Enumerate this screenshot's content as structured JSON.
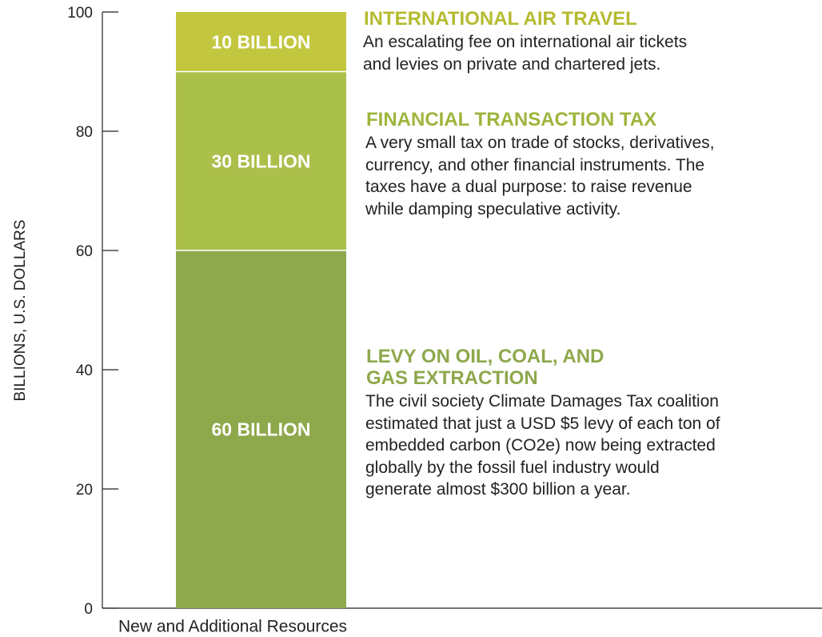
{
  "chart_data": {
    "type": "bar",
    "stacked": true,
    "categories": [
      "New and Additional Resources"
    ],
    "ylabel": "BILLIONS, U.S. DOLLARS",
    "ylim": [
      0,
      100
    ],
    "yticks": [
      0,
      20,
      40,
      60,
      80,
      100
    ],
    "series": [
      {
        "name": "LEVY ON OIL, COAL, AND GAS EXTRACTION",
        "color": "#8ea84c",
        "heading_color": "#8ea84c",
        "values": [
          60
        ],
        "value_labels": [
          "60 BILLION"
        ],
        "description": [
          "The civil society Climate Damages Tax coalition",
          "estimated that just a USD $5 levy of each ton of",
          "embedded carbon (CO2e) now being extracted",
          "globally by the fossil fuel industry would",
          "generate almost $300 billion a year."
        ]
      },
      {
        "name": "FINANCIAL TRANSACTION TAX",
        "color": "#abbf4b",
        "heading_color": "#9db53c",
        "values": [
          30
        ],
        "value_labels": [
          "30 BILLION"
        ],
        "description": [
          "A very small tax on trade of stocks, derivatives,",
          "currency, and other financial instruments. The",
          "taxes have a dual purpose: to raise revenue",
          "while damping speculative activity."
        ]
      },
      {
        "name": "INTERNATIONAL AIR TRAVEL",
        "color": "#c3c73f",
        "heading_color": "#b5bb2f",
        "values": [
          10
        ],
        "value_labels": [
          "10 BILLION"
        ],
        "description": [
          "An escalating fee on international air tickets",
          "and levies on private and chartered jets."
        ]
      }
    ]
  }
}
